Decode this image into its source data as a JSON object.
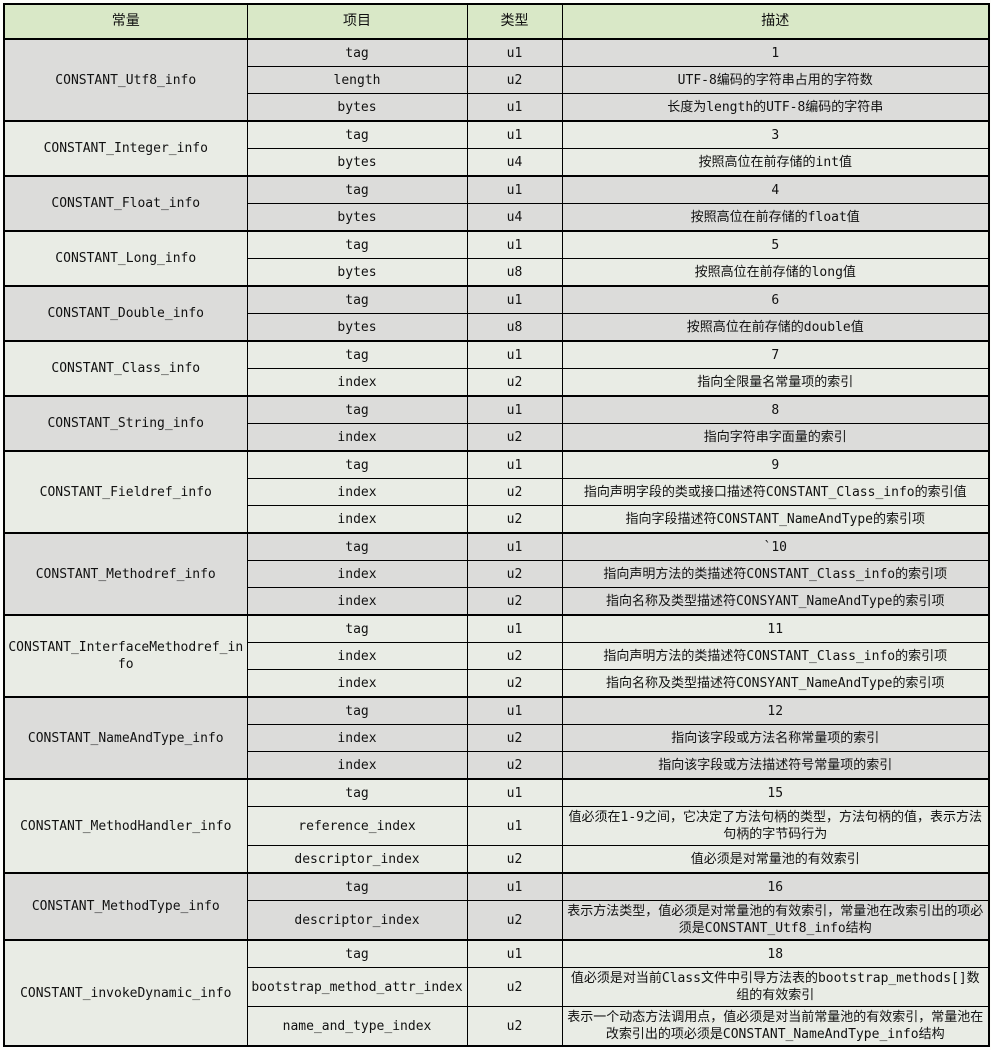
{
  "colors": {
    "header_bg": "#d9e8c7",
    "group_gray": "#dcdcda",
    "group_light": "#e9ece5",
    "border": "#000000"
  },
  "header": {
    "columns": [
      "常量",
      "项目",
      "类型",
      "描述"
    ]
  },
  "groups": [
    {
      "constant": "CONSTANT_Utf8_info",
      "rows": [
        {
          "item": "tag",
          "type": "u1",
          "desc": "1"
        },
        {
          "item": "length",
          "type": "u2",
          "desc": "UTF-8编码的字符串占用的字符数"
        },
        {
          "item": "bytes",
          "type": "u1",
          "desc": "长度为length的UTF-8编码的字符串"
        }
      ]
    },
    {
      "constant": "CONSTANT_Integer_info",
      "rows": [
        {
          "item": "tag",
          "type": "u1",
          "desc": "3"
        },
        {
          "item": "bytes",
          "type": "u4",
          "desc": "按照高位在前存储的int值"
        }
      ]
    },
    {
      "constant": "CONSTANT_Float_info",
      "rows": [
        {
          "item": "tag",
          "type": "u1",
          "desc": "4"
        },
        {
          "item": "bytes",
          "type": "u4",
          "desc": "按照高位在前存储的float值"
        }
      ]
    },
    {
      "constant": "CONSTANT_Long_info",
      "rows": [
        {
          "item": "tag",
          "type": "u1",
          "desc": "5"
        },
        {
          "item": "bytes",
          "type": "u8",
          "desc": "按照高位在前存储的long值"
        }
      ]
    },
    {
      "constant": "CONSTANT_Double_info",
      "rows": [
        {
          "item": "tag",
          "type": "u1",
          "desc": "6"
        },
        {
          "item": "bytes",
          "type": "u8",
          "desc": "按照高位在前存储的double值"
        }
      ]
    },
    {
      "constant": "CONSTANT_Class_info",
      "rows": [
        {
          "item": "tag",
          "type": "u1",
          "desc": "7"
        },
        {
          "item": "index",
          "type": "u2",
          "desc": "指向全限量名常量项的索引"
        }
      ]
    },
    {
      "constant": "CONSTANT_String_info",
      "rows": [
        {
          "item": "tag",
          "type": "u1",
          "desc": "8"
        },
        {
          "item": "index",
          "type": "u2",
          "desc": "指向字符串字面量的索引"
        }
      ]
    },
    {
      "constant": "CONSTANT_Fieldref_info",
      "rows": [
        {
          "item": "tag",
          "type": "u1",
          "desc": "9"
        },
        {
          "item": "index",
          "type": "u2",
          "desc": "指向声明字段的类或接口描述符CONSTANT_Class_info的索引值"
        },
        {
          "item": "index",
          "type": "u2",
          "desc": "指向字段描述符CONSTANT_NameAndType的索引项"
        }
      ]
    },
    {
      "constant": "CONSTANT_Methodref_info",
      "rows": [
        {
          "item": "tag",
          "type": "u1",
          "desc": "`10"
        },
        {
          "item": "index",
          "type": "u2",
          "desc": "指向声明方法的类描述符CONSTANT_Class_info的索引项"
        },
        {
          "item": "index",
          "type": "u2",
          "desc": "指向名称及类型描述符CONSYANT_NameAndType的索引项"
        }
      ]
    },
    {
      "constant": "CONSTANT_InterfaceMethodref_info",
      "rows": [
        {
          "item": "tag",
          "type": "u1",
          "desc": "11"
        },
        {
          "item": "index",
          "type": "u2",
          "desc": "指向声明方法的类描述符CONSTANT_Class_info的索引项"
        },
        {
          "item": "index",
          "type": "u2",
          "desc": "指向名称及类型描述符CONSYANT_NameAndType的索引项"
        }
      ]
    },
    {
      "constant": "CONSTANT_NameAndType_info",
      "rows": [
        {
          "item": "tag",
          "type": "u1",
          "desc": "12"
        },
        {
          "item": "index",
          "type": "u2",
          "desc": "指向该字段或方法名称常量项的索引"
        },
        {
          "item": "index",
          "type": "u2",
          "desc": "指向该字段或方法描述符号常量项的索引"
        }
      ]
    },
    {
      "constant": "CONSTANT_MethodHandler_info",
      "rows": [
        {
          "item": "tag",
          "type": "u1",
          "desc": "15"
        },
        {
          "item": "reference_index",
          "type": "u1",
          "desc": "值必须在1-9之间，它决定了方法句柄的类型，方法句柄的值，表示方法句柄的字节码行为"
        },
        {
          "item": "descriptor_index",
          "type": "u2",
          "desc": "值必须是对常量池的有效索引"
        }
      ]
    },
    {
      "constant": "CONSTANT_MethodType_info",
      "rows": [
        {
          "item": "tag",
          "type": "u1",
          "desc": "16"
        },
        {
          "item": "descriptor_index",
          "type": "u2",
          "desc": "表示方法类型，值必须是对常量池的有效索引，常量池在改索引出的项必须是CONSTANT_Utf8_info结构"
        }
      ]
    },
    {
      "constant": "CONSTANT_invokeDynamic_info",
      "rows": [
        {
          "item": "tag",
          "type": "u1",
          "desc": "18"
        },
        {
          "item": "bootstrap_method_attr_index",
          "type": "u2",
          "desc": "值必须是对当前Class文件中引导方法表的bootstrap_methods[]数组的有效索引"
        },
        {
          "item": "name_and_type_index",
          "type": "u2",
          "desc": "表示一个动态方法调用点，值必须是对当前常量池的有效索引，常量池在改索引出的项必须是CONSTANT_NameAndType_info结构"
        }
      ]
    }
  ]
}
